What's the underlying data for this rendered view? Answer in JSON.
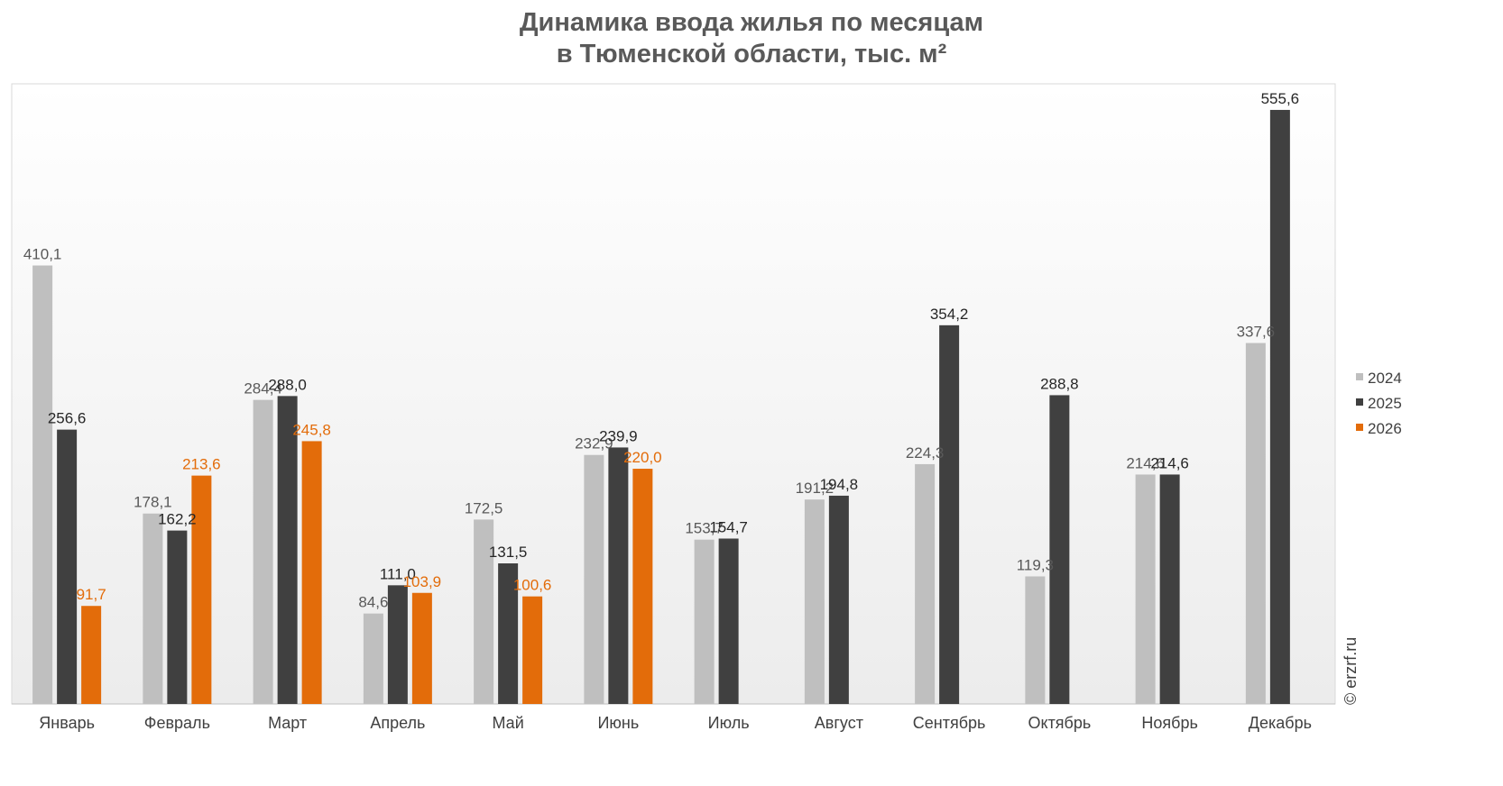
{
  "chart_data": {
    "type": "bar",
    "title_line1": "Динамика ввода жилья по месяцам",
    "title_line2": "в Тюменской области, тыс. м²",
    "categories": [
      "Январь",
      "Февраль",
      "Март",
      "Апрель",
      "Май",
      "Июнь",
      "Июль",
      "Август",
      "Сентябрь",
      "Октябрь",
      "Ноябрь",
      "Декабрь"
    ],
    "series": [
      {
        "name": "2024",
        "color": "#bfbfbf",
        "label_color": "#595959",
        "values": [
          410.1,
          178.1,
          284.4,
          84.6,
          172.5,
          232.9,
          153.7,
          191.2,
          224.3,
          119.3,
          214.6,
          337.6
        ],
        "labels": [
          "410,1",
          "178,1",
          "284,4",
          "84,6",
          "172,5",
          "232,9",
          "153,7",
          "191,2",
          "224,3",
          "119,3",
          "214,6",
          "337,6"
        ]
      },
      {
        "name": "2025",
        "color": "#404040",
        "label_color": "#262626",
        "values": [
          256.6,
          162.2,
          288.0,
          111.0,
          131.5,
          239.9,
          154.7,
          194.8,
          354.2,
          288.8,
          214.6,
          555.6
        ],
        "labels": [
          "256,6",
          "162,2",
          "288,0",
          "111,0",
          "131,5",
          "239,9",
          "154,7",
          "194,8",
          "354,2",
          "288,8",
          "214,6",
          "555,6"
        ]
      },
      {
        "name": "2026",
        "color": "#e36c0a",
        "label_color": "#e36c0a",
        "values": [
          91.7,
          213.6,
          245.8,
          103.9,
          100.6,
          220.0,
          null,
          null,
          null,
          null,
          null,
          null
        ],
        "labels": [
          "91,7",
          "213,6",
          "245,8",
          "103,9",
          "100,6",
          "220,0",
          "",
          "",
          "",
          "",
          "",
          ""
        ]
      }
    ],
    "ylim": [
      0,
      580
    ],
    "grid": false,
    "legend_position": "right"
  },
  "credit": "© erzrf.ru"
}
